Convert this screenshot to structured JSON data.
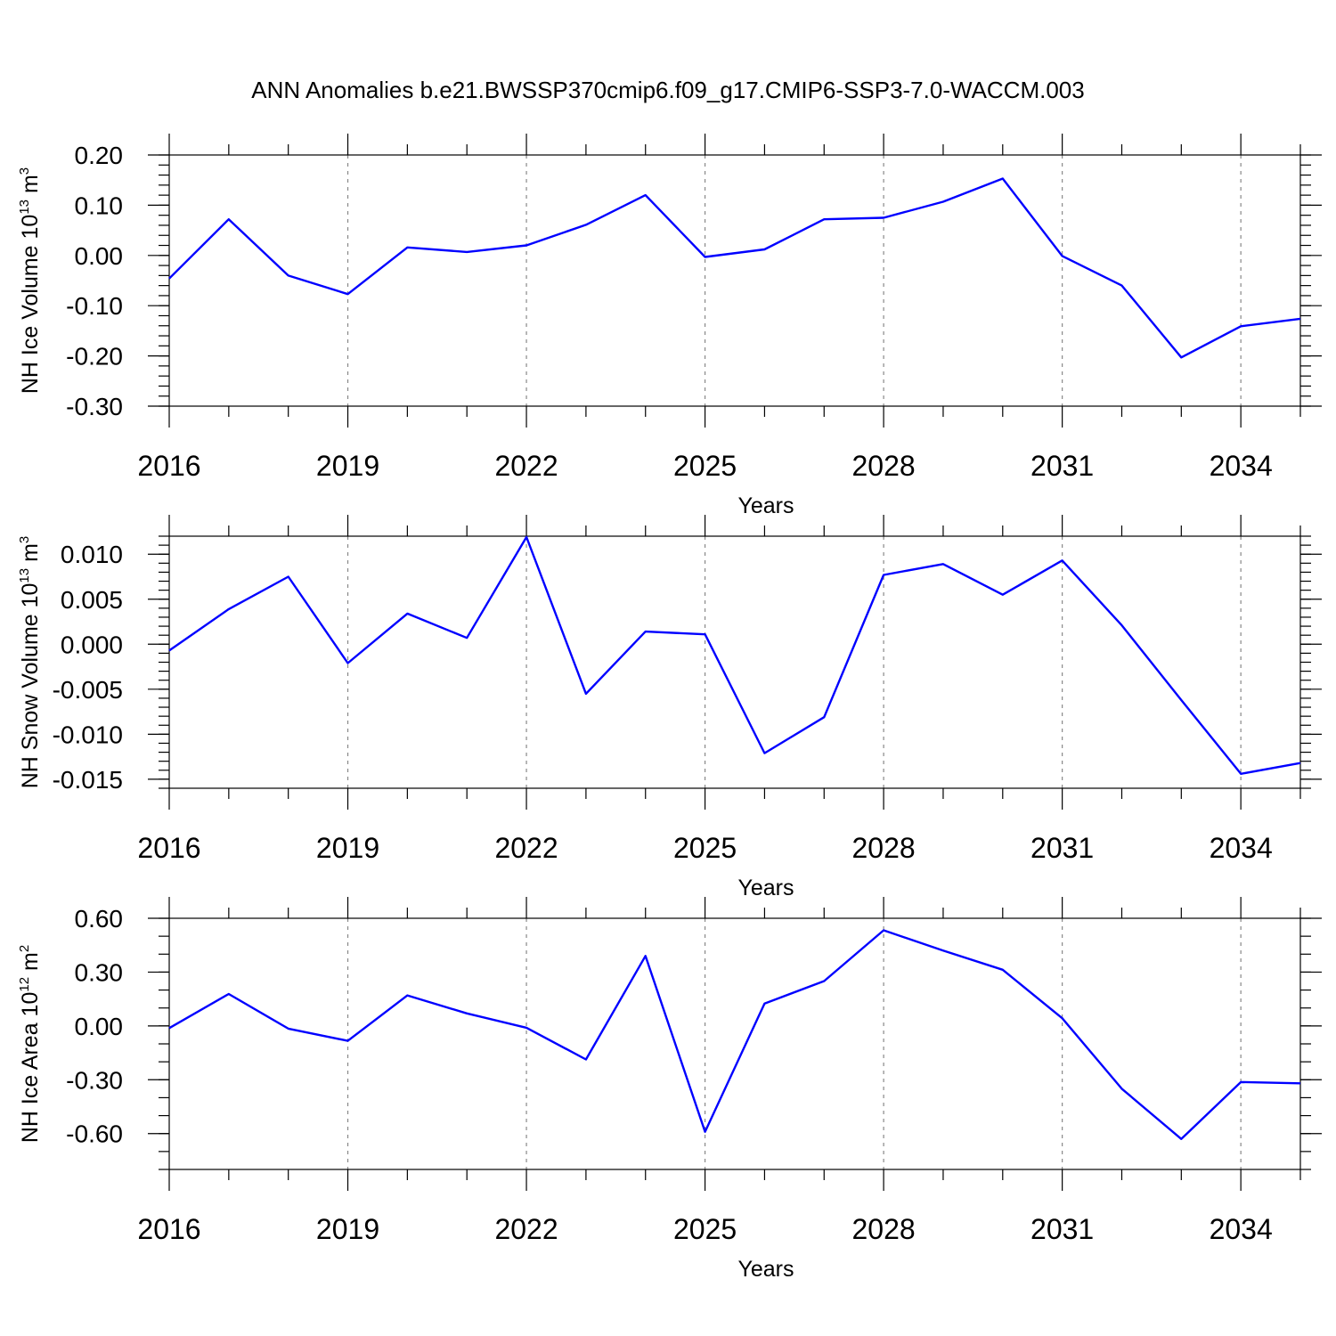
{
  "title": "ANN Anomalies b.e21.BWSSP370cmip6.f09_g17.CMIP6-SSP3-7.0-WACCM.003",
  "colors": {
    "series": "#0000ff",
    "axis": "#000000",
    "grid": "#888888"
  },
  "chart_data": [
    {
      "type": "line",
      "ylabel": "NH Ice Volume 10",
      "ylabel_exp": "13",
      "ylabel_unit": "m",
      "ylabel_unit_exp": "3",
      "xlabel": "Years",
      "xlim": [
        2016,
        2035
      ],
      "ylim": [
        -0.3,
        0.2
      ],
      "x_ticks": [
        2016,
        2019,
        2022,
        2025,
        2028,
        2031,
        2034
      ],
      "x_tick_labels": [
        "2016",
        "2019",
        "2022",
        "2025",
        "2028",
        "2031",
        "2034"
      ],
      "y_ticks": [
        -0.3,
        -0.2,
        -0.1,
        0.0,
        0.1,
        0.2
      ],
      "y_tick_labels": [
        "-0.30",
        "-0.20",
        "-0.10",
        "0.00",
        "0.10",
        "0.20"
      ],
      "y_minor_step": 0.02,
      "x": [
        2016,
        2017,
        2018,
        2019,
        2020,
        2021,
        2022,
        2023,
        2024,
        2025,
        2026,
        2027,
        2028,
        2029,
        2030,
        2031,
        2032,
        2033,
        2034,
        2035
      ],
      "values": [
        -0.046,
        0.072,
        -0.04,
        -0.077,
        0.016,
        0.007,
        0.02,
        0.061,
        0.12,
        -0.003,
        0.012,
        0.072,
        0.075,
        0.107,
        0.153,
        -0.001,
        -0.06,
        -0.203,
        -0.141,
        -0.126
      ]
    },
    {
      "type": "line",
      "ylabel": "NH Snow Volume 10",
      "ylabel_exp": "13",
      "ylabel_unit": "m",
      "ylabel_unit_exp": "3",
      "xlabel": "Years",
      "xlim": [
        2016,
        2035
      ],
      "ylim": [
        -0.016,
        0.012
      ],
      "x_ticks": [
        2016,
        2019,
        2022,
        2025,
        2028,
        2031,
        2034
      ],
      "x_tick_labels": [
        "2016",
        "2019",
        "2022",
        "2025",
        "2028",
        "2031",
        "2034"
      ],
      "y_ticks": [
        -0.015,
        -0.01,
        -0.005,
        0.0,
        0.005,
        0.01
      ],
      "y_tick_labels": [
        "-0.015",
        "-0.010",
        "-0.005",
        "0.000",
        "0.005",
        "0.010"
      ],
      "y_minor_step": 0.001,
      "x": [
        2016,
        2017,
        2018,
        2019,
        2020,
        2021,
        2022,
        2023,
        2024,
        2025,
        2026,
        2027,
        2028,
        2029,
        2030,
        2031,
        2032,
        2033,
        2034,
        2035
      ],
      "values": [
        -0.0007,
        0.0039,
        0.0075,
        -0.0021,
        0.0034,
        0.0007,
        0.0119,
        -0.0055,
        0.0014,
        0.0011,
        -0.0121,
        -0.0081,
        0.0077,
        0.0089,
        0.0055,
        0.0093,
        0.0021,
        -0.0062,
        -0.0144,
        -0.0132
      ]
    },
    {
      "type": "line",
      "ylabel": "NH Ice Area 10",
      "ylabel_exp": "12",
      "ylabel_unit": "m",
      "ylabel_unit_exp": "2",
      "xlabel": "Years",
      "xlim": [
        2016,
        2035
      ],
      "ylim": [
        -0.8,
        0.6
      ],
      "x_ticks": [
        2016,
        2019,
        2022,
        2025,
        2028,
        2031,
        2034
      ],
      "x_tick_labels": [
        "2016",
        "2019",
        "2022",
        "2025",
        "2028",
        "2031",
        "2034"
      ],
      "y_ticks": [
        -0.6,
        -0.3,
        0.0,
        0.3,
        0.6
      ],
      "y_tick_labels": [
        "-0.60",
        "-0.30",
        "0.00",
        "0.30",
        "0.60"
      ],
      "y_minor_step": 0.1,
      "x": [
        2016,
        2017,
        2018,
        2019,
        2020,
        2021,
        2022,
        2023,
        2024,
        2025,
        2026,
        2027,
        2028,
        2029,
        2030,
        2031,
        2032,
        2033,
        2034,
        2035
      ],
      "values": [
        -0.012,
        0.178,
        -0.015,
        -0.083,
        0.17,
        0.07,
        -0.01,
        -0.187,
        0.39,
        -0.59,
        0.125,
        0.25,
        0.533,
        0.42,
        0.313,
        0.043,
        -0.35,
        -0.63,
        -0.313,
        -0.32
      ]
    }
  ]
}
